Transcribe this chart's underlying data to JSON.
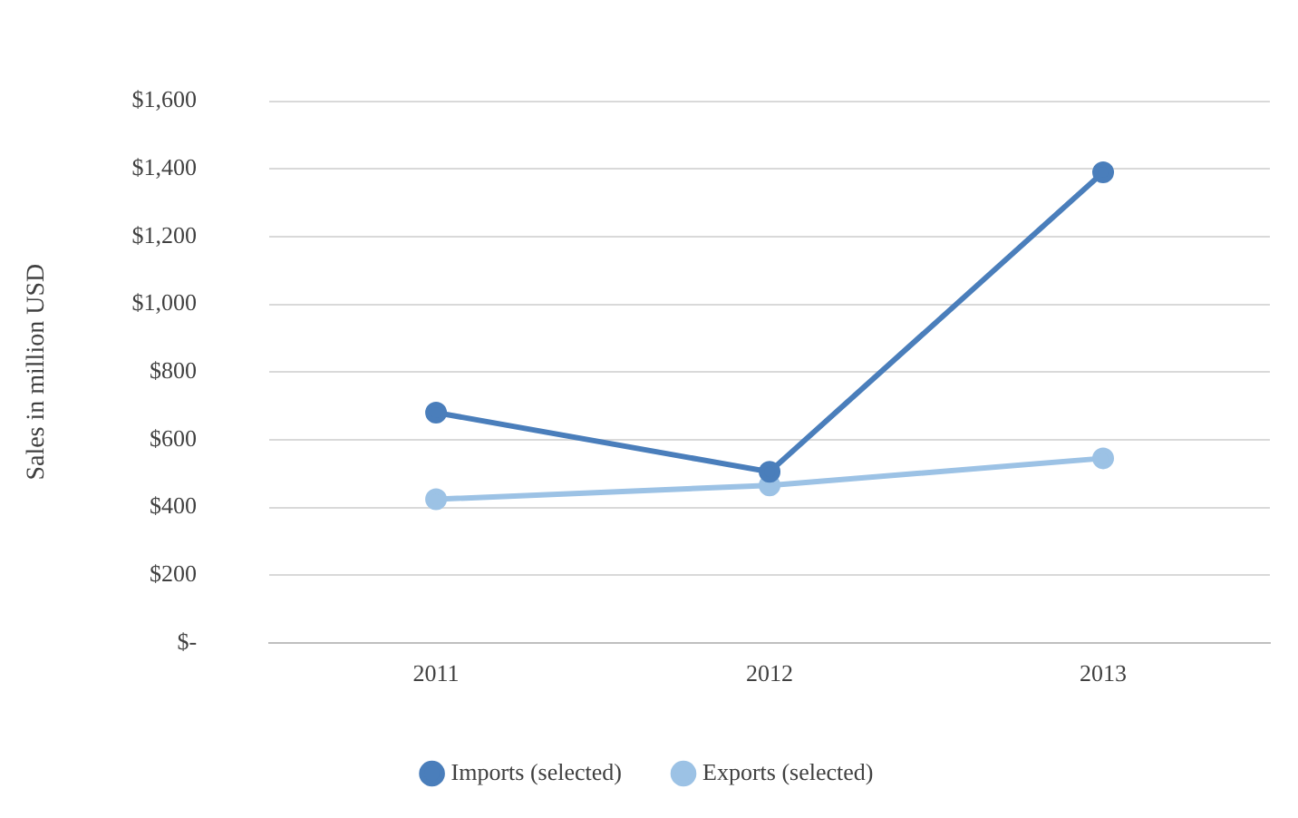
{
  "chart_data": {
    "type": "line",
    "ylabel": "Sales in million USD",
    "categories": [
      "2011",
      "2012",
      "2013"
    ],
    "series": [
      {
        "name": "Imports (selected)",
        "color": "#4a7ebb",
        "values": [
          680,
          505,
          1390
        ]
      },
      {
        "name": "Exports (selected)",
        "color": "#9cc2e5",
        "values": [
          424,
          465,
          545
        ]
      }
    ],
    "ylim": [
      0,
      1600
    ],
    "yticks": [
      {
        "value": 0,
        "label": "$-"
      },
      {
        "value": 200,
        "label": "$200"
      },
      {
        "value": 400,
        "label": "$400"
      },
      {
        "value": 600,
        "label": "$600"
      },
      {
        "value": 800,
        "label": "$800"
      },
      {
        "value": 1000,
        "label": "$1,000"
      },
      {
        "value": 1200,
        "label": "$1,200"
      },
      {
        "value": 1400,
        "label": "$1,400"
      },
      {
        "value": 1600,
        "label": "$1,600"
      }
    ],
    "grid": "y",
    "legend": "bottom",
    "marker": "circle",
    "line_style": "solid"
  }
}
